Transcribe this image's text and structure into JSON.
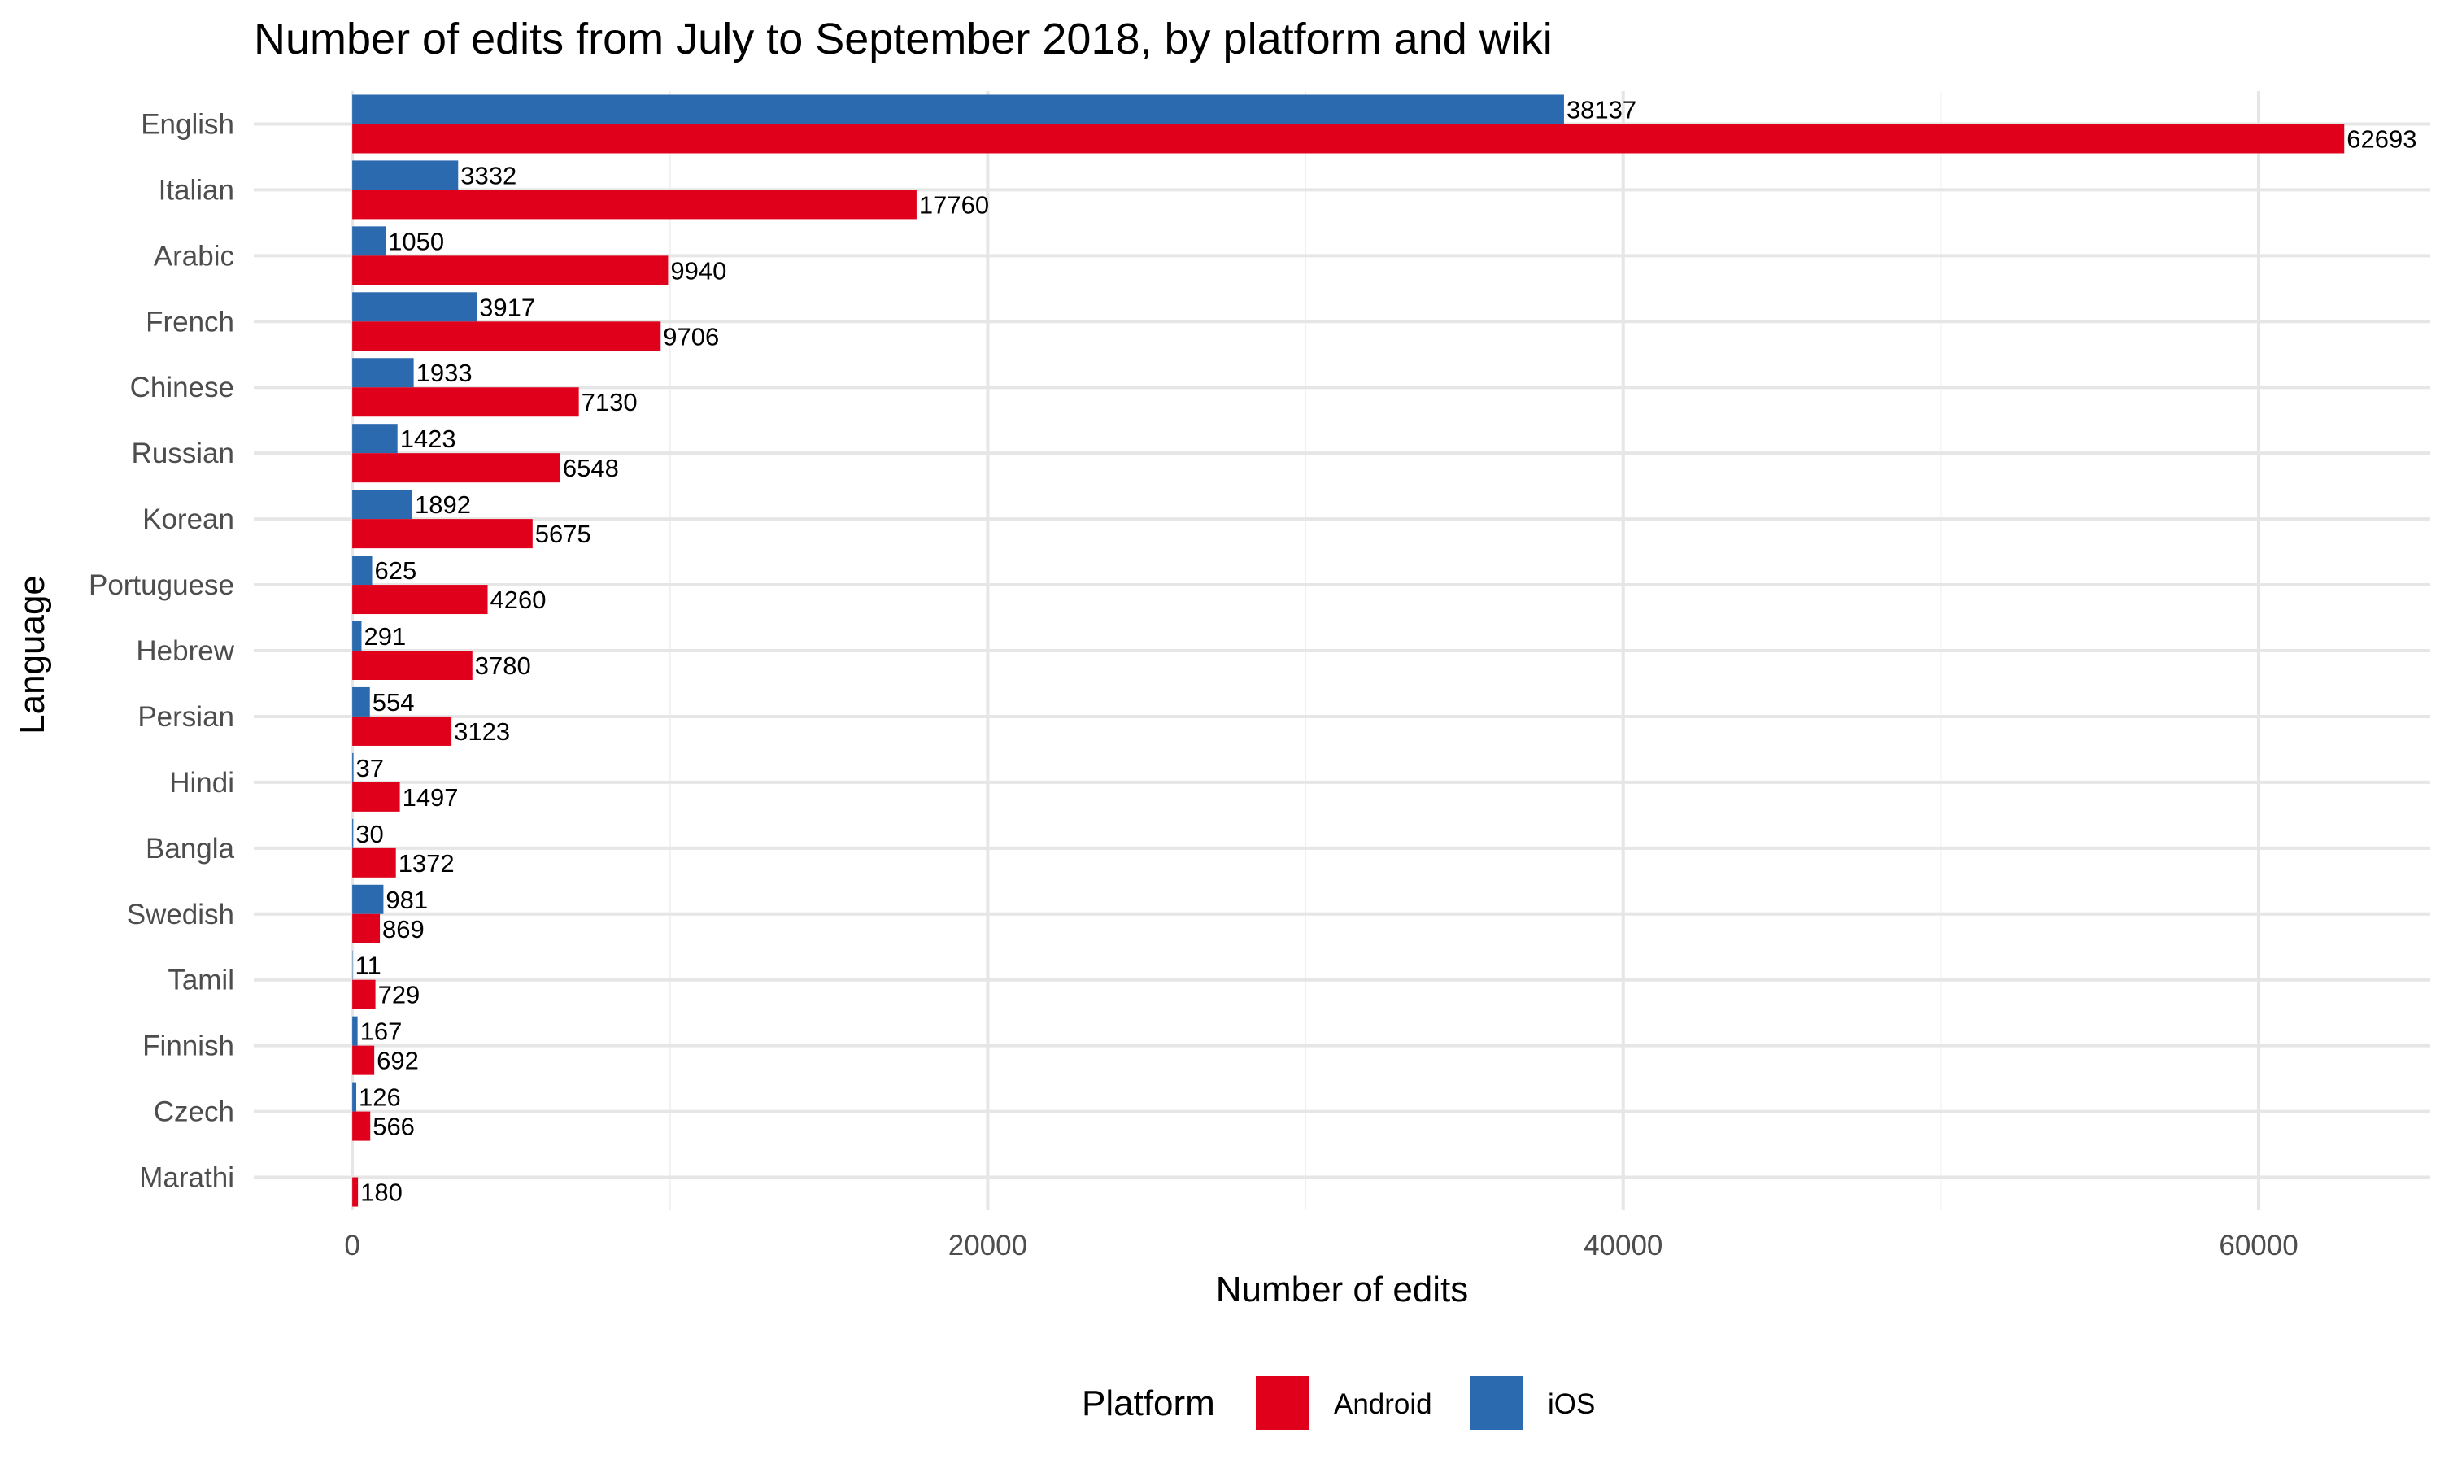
{
  "chart_data": {
    "type": "bar",
    "orientation": "horizontal",
    "title": "Number of edits from July to September 2018, by platform and wiki",
    "xlabel": "Number of edits",
    "ylabel": "Language",
    "categories": [
      "English",
      "Italian",
      "Arabic",
      "French",
      "Chinese",
      "Russian",
      "Korean",
      "Portuguese",
      "Hebrew",
      "Persian",
      "Hindi",
      "Bangla",
      "Swedish",
      "Tamil",
      "Finnish",
      "Czech",
      "Marathi"
    ],
    "series": [
      {
        "name": "iOS",
        "color": "#2b6aae",
        "values": [
          38137,
          3332,
          1050,
          3917,
          1933,
          1423,
          1892,
          625,
          291,
          554,
          37,
          30,
          981,
          11,
          167,
          126,
          null
        ],
        "labels": [
          "38137",
          "3332",
          "1050",
          "3917",
          "1933",
          "1423",
          "1892",
          "625",
          "291",
          "554",
          "37",
          "30",
          "981",
          "11",
          "167",
          "126",
          ""
        ]
      },
      {
        "name": "Android",
        "color": "#e0001b",
        "values": [
          62693,
          17760,
          9940,
          9706,
          7130,
          6548,
          5675,
          4260,
          3780,
          3123,
          1497,
          1372,
          869,
          729,
          692,
          566,
          180
        ],
        "labels": [
          "62693",
          "17760",
          "9940",
          "9706",
          "7130",
          "6548",
          "5675",
          "4260",
          "3780",
          "3123",
          "1497",
          "1372",
          "869",
          "729",
          "692",
          "566",
          "180"
        ]
      }
    ],
    "xlim": [
      -3100,
      65400
    ],
    "xticks": [
      0,
      20000,
      40000,
      60000
    ],
    "xtick_labels": [
      "0",
      "20000",
      "40000",
      "60000"
    ],
    "grid": true,
    "legend": {
      "title": "Platform",
      "position": "bottom",
      "order": [
        "Android",
        "iOS"
      ]
    }
  }
}
